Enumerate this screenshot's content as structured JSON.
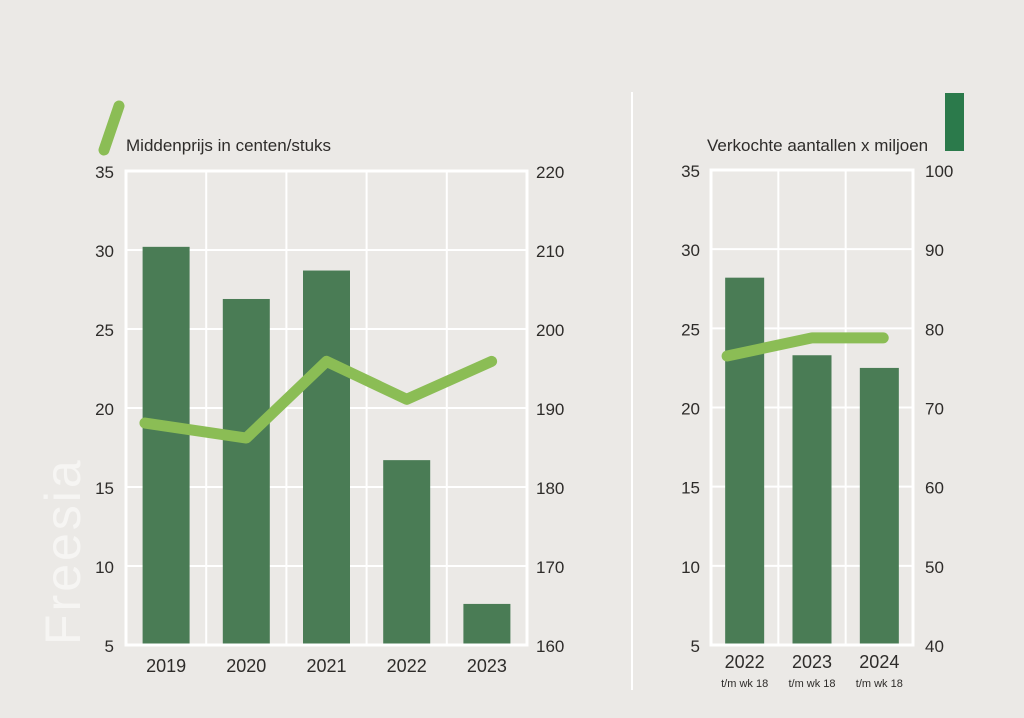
{
  "colors": {
    "background": "#ebe9e6",
    "bar": "#4a7c55",
    "line": "#8bbd55",
    "legend_bar": "#2b7a4b",
    "grid": "#ffffff",
    "text": "#2e2c2a",
    "watermark": "#f6f5f3"
  },
  "watermark": "Freesia",
  "legend": {
    "line_label": "Middenprijs in centen/stuks",
    "bar_label": "Verkochte aantallen x miljoen"
  },
  "chart_data": [
    {
      "type": "bar",
      "title": "",
      "categories": [
        "2019",
        "2020",
        "2021",
        "2022",
        "2023"
      ],
      "category_sublabels": [
        "",
        "",
        "",
        "",
        ""
      ],
      "series": [
        {
          "name": "Verkochte aantallen x miljoen",
          "type": "bar",
          "axis": "left",
          "values": [
            30.2,
            26.9,
            28.7,
            16.7,
            7.6
          ]
        },
        {
          "name": "Middenprijs in centen/stuks",
          "type": "line",
          "axis": "right",
          "values": [
            188.1,
            186.2,
            195.9,
            191.1,
            195.9
          ]
        }
      ],
      "left_axis": {
        "range": [
          5,
          35
        ],
        "ticks": [
          "35",
          "30",
          "25",
          "20",
          "15",
          "10",
          "5"
        ]
      },
      "right_axis": {
        "range": [
          160,
          220
        ],
        "ticks": [
          "220",
          "210",
          "200",
          "190",
          "180",
          "170",
          "160"
        ]
      },
      "grid": true,
      "legend_position": "top-left"
    },
    {
      "type": "bar",
      "title": "",
      "categories": [
        "2022",
        "2023",
        "2024"
      ],
      "category_sublabels": [
        "t/m wk 18",
        "t/m wk 18",
        "t/m wk 18"
      ],
      "series": [
        {
          "name": "Verkochte aantallen x miljoen",
          "type": "bar",
          "axis": "left",
          "values": [
            28.2,
            23.3,
            22.5
          ]
        },
        {
          "name": "Middenprijs in centen/stuks",
          "type": "line",
          "axis": "right",
          "values": [
            76.5,
            78.8,
            78.8
          ]
        }
      ],
      "left_axis": {
        "range": [
          5,
          35
        ],
        "ticks": [
          "35",
          "30",
          "25",
          "20",
          "15",
          "10",
          "5"
        ]
      },
      "right_axis": {
        "range": [
          40,
          100
        ],
        "ticks": [
          "100",
          "90",
          "80",
          "70",
          "60",
          "50",
          "40"
        ]
      },
      "grid": true,
      "legend_position": "top-right"
    }
  ]
}
